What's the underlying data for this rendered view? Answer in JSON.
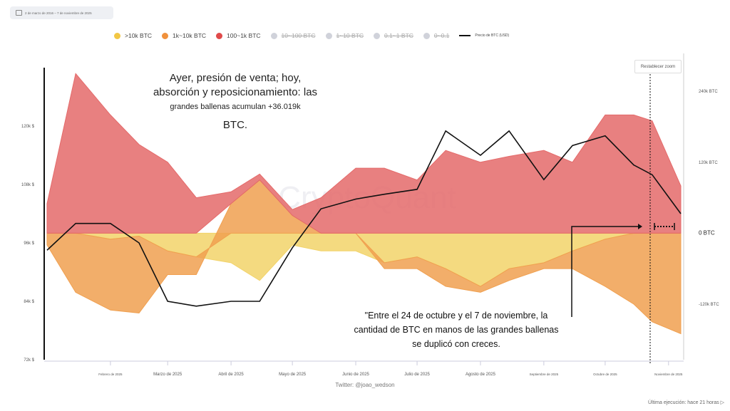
{
  "date_range": "2 de marzo de 2016 – 7 de noviembre de 2025",
  "reset_zoom": "Restablecer zoom",
  "legend": [
    {
      "label": ">10k BTC",
      "color": "#f2c744",
      "active": true
    },
    {
      "label": "1k~10k BTC",
      "color": "#f0913c",
      "active": true
    },
    {
      "label": "100~1k BTC",
      "color": "#e04a4a",
      "active": true
    },
    {
      "label": "10~100 BTC",
      "color": "#d0d2da",
      "active": false
    },
    {
      "label": "1~10 BTC",
      "color": "#d0d2da",
      "active": false
    },
    {
      "label": "0.1~1 BTC",
      "color": "#d0d2da",
      "active": false
    },
    {
      "label": "0~0.1",
      "color": "#d0d2da",
      "active": false
    },
    {
      "label": "Precio de BTC (USD)",
      "color": "#111111",
      "active": true
    }
  ],
  "annotation_top": {
    "l1": "Ayer, presión de venta; hoy,",
    "l2": "absorción y reposicionamiento: las",
    "l3": "grandes ballenas acumulan +36.019k",
    "l4": "BTC."
  },
  "annotation_bottom": {
    "l1": "\"Entre el 24 de octubre y el 7 de noviembre, la",
    "l2": "cantidad de BTC en manos de las grandes ballenas",
    "l3": "se duplicó con creces."
  },
  "watermark": "CryptoQuant",
  "footer": "Twitter: @joao_wedson",
  "last_run": "Última ejecución: hace 21 horas ▷",
  "chart_data": {
    "type": "area",
    "x_ticks": [
      "Febrero de 2025",
      "Marzo de 2025",
      "Abril de 2025",
      "Mayo de 2025",
      "Junio de 2025",
      "Julio de 2025",
      "Agosto de 2025",
      "Septiembre de 2025",
      "Octubre de 2025",
      "Noviembre de 2025"
    ],
    "y_left": {
      "ticks": [
        "72k $",
        "84k $",
        "96k $",
        "108k $",
        "120k $"
      ],
      "range": [
        72000,
        132000
      ]
    },
    "y_right": {
      "ticks": [
        "240k BTC",
        "120k BTC",
        "0 BTC",
        "-120k BTC"
      ],
      "range": [
        -214000,
        280000
      ]
    },
    "x": [
      "2025-01-01",
      "2025-01-15",
      "2025-02-01",
      "2025-02-15",
      "2025-03-01",
      "2025-03-15",
      "2025-04-01",
      "2025-04-15",
      "2025-05-01",
      "2025-05-15",
      "2025-06-01",
      "2025-06-15",
      "2025-07-01",
      "2025-07-15",
      "2025-08-01",
      "2025-08-15",
      "2025-09-01",
      "2025-09-15",
      "2025-10-01",
      "2025-10-15",
      "2025-10-24",
      "2025-11-07"
    ],
    "series": [
      {
        "name": ">10k BTC",
        "axis": "right",
        "color": "#f2d36a",
        "values": [
          0,
          0,
          -10000,
          -5000,
          -30000,
          -40000,
          -50000,
          -80000,
          -20000,
          -30000,
          -30000,
          -50000,
          -40000,
          -60000,
          -90000,
          -60000,
          -50000,
          -30000,
          -10000,
          0,
          0,
          0
        ]
      },
      {
        "name": "1k~10k BTC",
        "axis": "right",
        "color": "#f0a050",
        "values": [
          -20000,
          -100000,
          -120000,
          -130000,
          -40000,
          -30000,
          50000,
          90000,
          30000,
          0,
          0,
          -10000,
          -20000,
          -30000,
          -10000,
          -20000,
          -10000,
          -30000,
          -80000,
          -120000,
          -150000,
          -170000
        ]
      },
      {
        "name": "100~1k BTC",
        "axis": "right",
        "color": "#e46a6a",
        "values": [
          50000,
          270000,
          200000,
          150000,
          120000,
          60000,
          20000,
          10000,
          10000,
          60000,
          110000,
          110000,
          90000,
          140000,
          120000,
          130000,
          140000,
          120000,
          200000,
          200000,
          190000,
          80000
        ]
      },
      {
        "name": "Precio de BTC (USD)",
        "axis": "left",
        "color": "#111111",
        "values": [
          94500,
          100000,
          100000,
          96000,
          84000,
          83000,
          84000,
          84000,
          95000,
          103000,
          105000,
          106000,
          107000,
          119000,
          114000,
          119000,
          109000,
          116000,
          118000,
          112000,
          110000,
          102000
        ]
      }
    ]
  }
}
